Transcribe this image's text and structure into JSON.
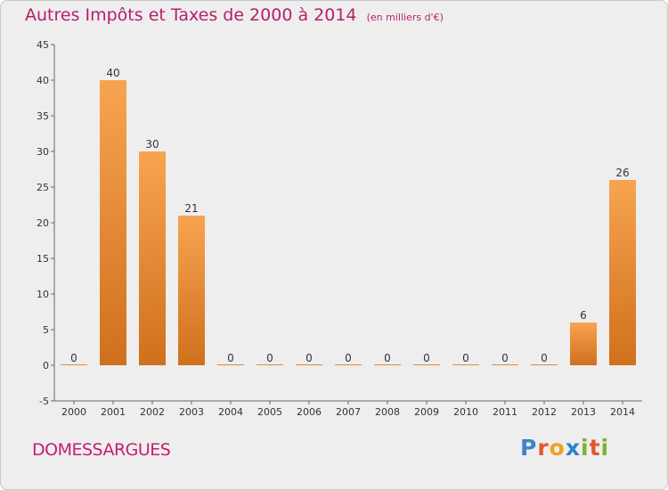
{
  "chart_data": {
    "type": "bar",
    "title": "Autres Impôts et Taxes de 2000 à 2014",
    "unit_note": "(en milliers d'€)",
    "subject": "DOMESSARGUES",
    "logo_text": "Proxiti",
    "categories": [
      "2000",
      "2001",
      "2002",
      "2003",
      "2004",
      "2005",
      "2006",
      "2007",
      "2008",
      "2009",
      "2010",
      "2011",
      "2012",
      "2013",
      "2014"
    ],
    "values": [
      0,
      40,
      30,
      21,
      0,
      0,
      0,
      0,
      0,
      0,
      0,
      0,
      0,
      6,
      26
    ],
    "ylim": [
      -5,
      45
    ],
    "yticks": [
      -5,
      0,
      5,
      10,
      15,
      20,
      25,
      30,
      35,
      40,
      45
    ],
    "grid": false,
    "colors": {
      "bar_top": "#f7a451",
      "bar_bottom": "#d0701c",
      "title": "#b81e6a",
      "subject": "#c41f6e",
      "background": "#eeeeee"
    }
  }
}
